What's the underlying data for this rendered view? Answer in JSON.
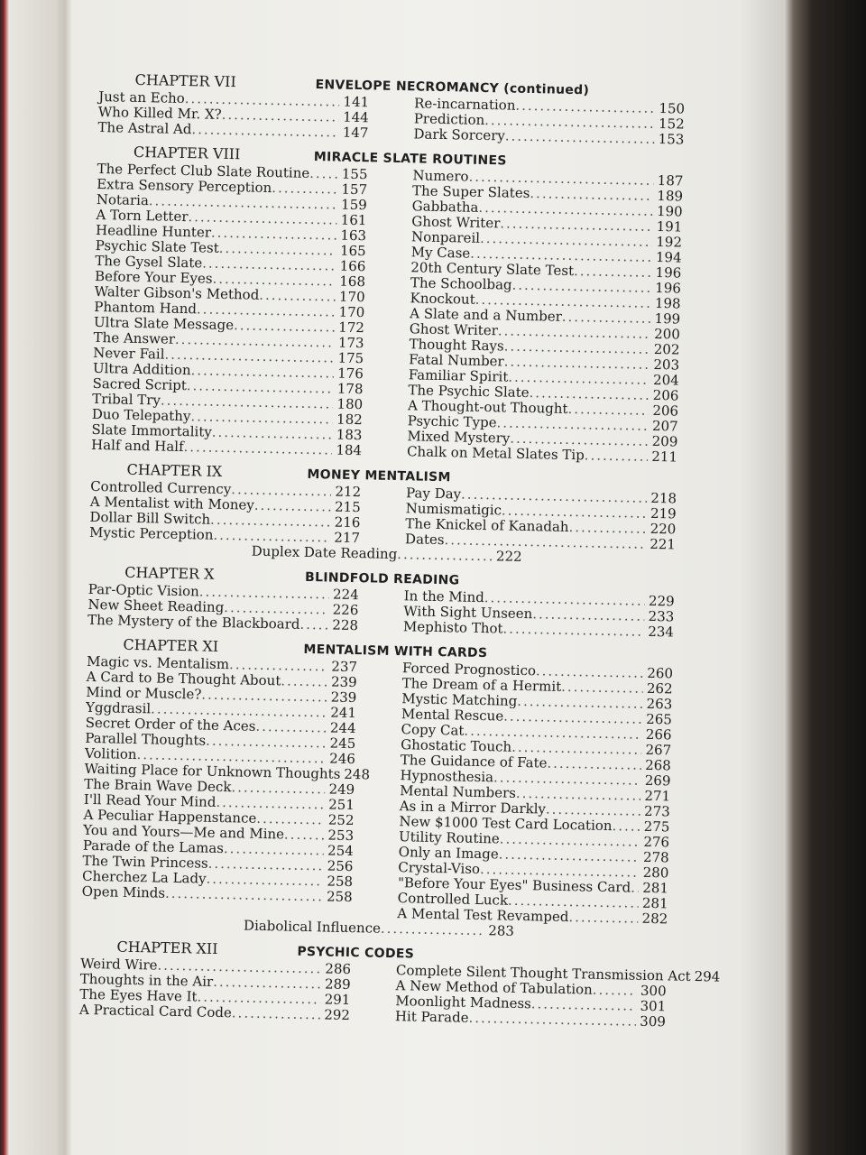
{
  "chapters": [
    {
      "number": "CHAPTER VII",
      "title": "ENVELOPE NECROMANCY (continued)",
      "left": [
        [
          "Just an Echo",
          "141"
        ],
        [
          "Who Killed Mr. X?",
          "144"
        ],
        [
          "The Astral Ad",
          "147"
        ]
      ],
      "right": [
        [
          "Re-incarnation",
          "150"
        ],
        [
          "Prediction",
          "152"
        ],
        [
          "Dark Sorcery",
          "153"
        ]
      ],
      "extra": null
    },
    {
      "number": "CHAPTER VIII",
      "title": "MIRACLE SLATE ROUTINES",
      "left": [
        [
          "The Perfect Club Slate Routine",
          "155"
        ],
        [
          "Extra Sensory Perception",
          "157"
        ],
        [
          "Notaria",
          "159"
        ],
        [
          "A Torn Letter",
          "161"
        ],
        [
          "Headline Hunter",
          "163"
        ],
        [
          "Psychic Slate Test",
          "165"
        ],
        [
          "The Gysel Slate",
          "166"
        ],
        [
          "Before Your Eyes",
          "168"
        ],
        [
          "Walter Gibson's Method",
          "170"
        ],
        [
          "Phantom Hand",
          "170"
        ],
        [
          "Ultra Slate Message",
          "172"
        ],
        [
          "The Answer",
          "173"
        ],
        [
          "Never Fail",
          "175"
        ],
        [
          "Ultra Addition",
          "176"
        ],
        [
          "Sacred Script",
          "178"
        ],
        [
          "Tribal Try",
          "180"
        ],
        [
          "Duo Telepathy",
          "182"
        ],
        [
          "Slate Immortality",
          "183"
        ],
        [
          "Half and Half",
          "184"
        ]
      ],
      "right": [
        [
          "Numero",
          "187"
        ],
        [
          "The Super Slates",
          "189"
        ],
        [
          "Gabbatha",
          "190"
        ],
        [
          "Ghost Writer",
          "191"
        ],
        [
          "Nonpareil",
          "192"
        ],
        [
          "My Case",
          "194"
        ],
        [
          "20th Century Slate Test",
          "196"
        ],
        [
          "The Schoolbag",
          "196"
        ],
        [
          "Knockout",
          "198"
        ],
        [
          "A Slate and a Number",
          "199"
        ],
        [
          "Ghost Writer",
          "200"
        ],
        [
          "Thought Rays",
          "202"
        ],
        [
          "Fatal Number",
          "203"
        ],
        [
          "Familiar Spirit",
          "204"
        ],
        [
          "The Psychic Slate",
          "206"
        ],
        [
          "A Thought-out Thought",
          "206"
        ],
        [
          "Psychic Type",
          "207"
        ],
        [
          "Mixed Mystery",
          "209"
        ],
        [
          "Chalk on Metal Slates Tip",
          "211"
        ]
      ],
      "extra": null
    },
    {
      "number": "CHAPTER IX",
      "title": "MONEY MENTALISM",
      "left": [
        [
          "Controlled Currency",
          "212"
        ],
        [
          "A Mentalist with Money",
          "215"
        ],
        [
          "Dollar Bill Switch",
          "216"
        ],
        [
          "Mystic Perception",
          "217"
        ]
      ],
      "right": [
        [
          "Pay Day",
          "218"
        ],
        [
          "Numismatigic",
          "219"
        ],
        [
          "The Knickel of Kanadah",
          "220"
        ],
        [
          "Dates",
          "221"
        ]
      ],
      "extra": [
        "Duplex Date Reading",
        "222"
      ]
    },
    {
      "number": "CHAPTER X",
      "title": "BLINDFOLD READING",
      "left": [
        [
          "Par-Optic Vision",
          "224"
        ],
        [
          "New Sheet Reading",
          "226"
        ],
        [
          "The Mystery of the Blackboard",
          "228"
        ]
      ],
      "right": [
        [
          "In the Mind",
          "229"
        ],
        [
          "With Sight Unseen",
          "233"
        ],
        [
          "Mephisto Thot",
          "234"
        ]
      ],
      "extra": null
    },
    {
      "number": "CHAPTER XI",
      "title": "MENTALISM WITH CARDS",
      "left": [
        [
          "Magic vs. Mentalism",
          "237"
        ],
        [
          "A Card to Be Thought About",
          "239"
        ],
        [
          "Mind or Muscle?",
          "239"
        ],
        [
          "Yggdrasil",
          "241"
        ],
        [
          "Secret Order of the Aces",
          "244"
        ],
        [
          "Parallel Thoughts",
          "245"
        ],
        [
          "Volition",
          "246"
        ],
        [
          "Waiting Place for Unknown Thoughts",
          "248"
        ],
        [
          "The Brain Wave Deck",
          "249"
        ],
        [
          "I'll Read Your Mind",
          "251"
        ],
        [
          "A Peculiar Happenstance",
          "252"
        ],
        [
          "You and Yours—Me and Mine",
          "253"
        ],
        [
          "Parade of the Lamas",
          "254"
        ],
        [
          "The Twin Princess",
          "256"
        ],
        [
          "Cherchez La Lady",
          "258"
        ],
        [
          "Open Minds",
          "258"
        ]
      ],
      "right": [
        [
          "Forced Prognostico",
          "260"
        ],
        [
          "The Dream of a Hermit",
          "262"
        ],
        [
          "Mystic Matching",
          "263"
        ],
        [
          "Mental Rescue",
          "265"
        ],
        [
          "Copy Cat",
          "266"
        ],
        [
          "Ghostatic Touch",
          "267"
        ],
        [
          "The Guidance of Fate",
          "268"
        ],
        [
          "Hypnosthesia",
          "269"
        ],
        [
          "Mental Numbers",
          "271"
        ],
        [
          "As in a Mirror Darkly",
          "273"
        ],
        [
          "New $1000 Test Card Location",
          "275"
        ],
        [
          "Utility Routine",
          "276"
        ],
        [
          "Only an Image",
          "278"
        ],
        [
          "Crystal-Viso",
          "280"
        ],
        [
          "\"Before Your Eyes\" Business Card",
          "281"
        ],
        [
          "Controlled Luck",
          "281"
        ],
        [
          "A Mental Test Revamped",
          "282"
        ]
      ],
      "extra": [
        "Diabolical Influence",
        "283"
      ]
    },
    {
      "number": "CHAPTER XII",
      "title": "PSYCHIC CODES",
      "left": [
        [
          "Weird Wire",
          "286"
        ],
        [
          "Thoughts in the Air",
          "289"
        ],
        [
          "The Eyes Have It",
          "291"
        ],
        [
          "A Practical Card Code",
          "292"
        ]
      ],
      "right": [
        [
          "Complete Silent Thought Transmission Act",
          "294"
        ],
        [
          "A New Method of Tabulation",
          "300"
        ],
        [
          "Moonlight Madness",
          "301"
        ],
        [
          "Hit Parade",
          "309"
        ]
      ],
      "extra": null
    }
  ]
}
